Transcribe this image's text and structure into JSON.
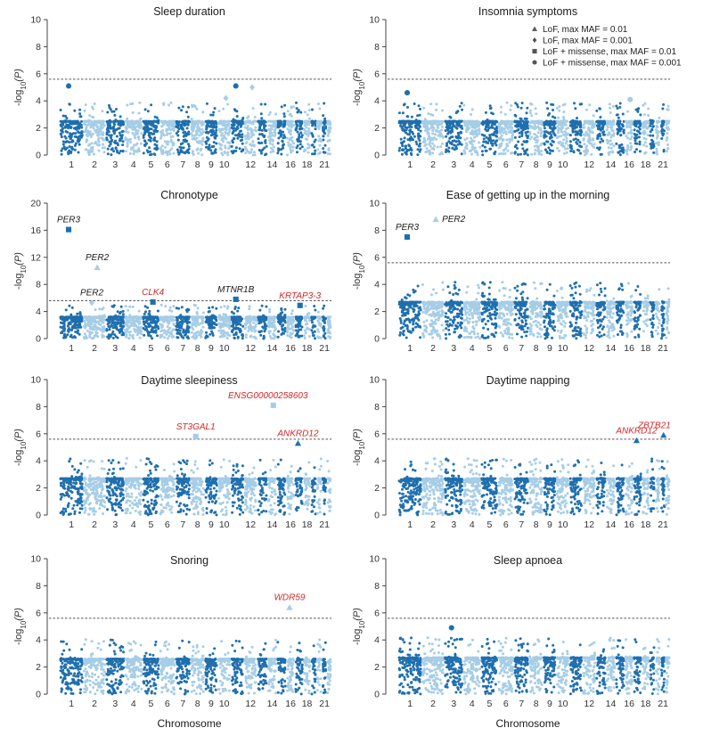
{
  "chart_data": {
    "type": "scatter",
    "subtype": "manhattan",
    "ylabel": "-log10(P)",
    "xlabel": "Chromosome",
    "significance_threshold": 5.6,
    "colors": {
      "odd_chromosome": "#1f6fae",
      "even_chromosome": "#a6cde6",
      "highlight_label": "#d62728",
      "plain_label": "#1a1a1a"
    },
    "legend": [
      {
        "shape": "triangle",
        "label": "LoF, max MAF = 0.01"
      },
      {
        "shape": "diamond",
        "label": "LoF, max MAF = 0.001"
      },
      {
        "shape": "square",
        "label": "LoF + missense, max MAF = 0.01"
      },
      {
        "shape": "circle",
        "label": "LoF + missense, max MAF = 0.001"
      }
    ],
    "chromosomes": [
      1,
      2,
      3,
      4,
      5,
      6,
      7,
      8,
      9,
      10,
      11,
      12,
      13,
      14,
      15,
      16,
      17,
      18,
      19,
      20,
      21,
      22
    ],
    "chromosome_tick_labels": [
      "1",
      "2",
      "3",
      "4",
      "5",
      "6",
      "7",
      "8",
      "9",
      "10",
      "",
      "12",
      "",
      "14",
      "",
      "16",
      "",
      "18",
      "",
      "",
      "21",
      ""
    ],
    "panels": [
      {
        "title": "Sleep duration",
        "ylim": [
          0,
          10
        ],
        "yticks": [
          0,
          2,
          4,
          6,
          8,
          10
        ],
        "base": 2.5,
        "hits": [
          {
            "chrom": 1,
            "value": 5.1,
            "shape": "circle",
            "gene": "",
            "label_color": "plain"
          },
          {
            "chrom": 10,
            "value": 4.2,
            "shape": "diamond",
            "gene": "",
            "label_color": "plain"
          },
          {
            "chrom": 11,
            "value": 5.1,
            "shape": "circle",
            "gene": "",
            "label_color": "plain"
          },
          {
            "chrom": 12,
            "value": 5.0,
            "shape": "diamond",
            "gene": "",
            "label_color": "plain"
          }
        ]
      },
      {
        "title": "Insomnia symptoms",
        "ylim": [
          0,
          10
        ],
        "yticks": [
          0,
          2,
          4,
          6,
          8,
          10
        ],
        "base": 2.5,
        "hits": [
          {
            "chrom": 1,
            "value": 4.6,
            "shape": "circle",
            "gene": "",
            "label_color": "plain"
          },
          {
            "chrom": 16,
            "value": 4.1,
            "shape": "circle",
            "gene": "",
            "label_color": "plain"
          }
        ]
      },
      {
        "title": "Chronotype",
        "ylim": [
          0,
          20
        ],
        "yticks": [
          0,
          4,
          8,
          12,
          16,
          20
        ],
        "base": 3.2,
        "hits": [
          {
            "chrom": 1,
            "value": 16.1,
            "shape": "square",
            "gene": "PER3",
            "label_color": "plain"
          },
          {
            "chrom": 2,
            "value": 10.5,
            "shape": "triangle",
            "gene": "PER2",
            "label_color": "plain"
          },
          {
            "chrom": 2,
            "value": 5.3,
            "shape": "diamond",
            "gene": "PER2",
            "label_color": "plain"
          },
          {
            "chrom": 5,
            "value": 5.4,
            "shape": "square",
            "gene": "CLK4",
            "label_color": "red"
          },
          {
            "chrom": 11,
            "value": 5.8,
            "shape": "square",
            "gene": "MTNR1B",
            "label_color": "plain"
          },
          {
            "chrom": 17,
            "value": 4.9,
            "shape": "square",
            "gene": "KRTAP3-3",
            "label_color": "red"
          }
        ]
      },
      {
        "title": "Ease of getting up in the morning",
        "ylim": [
          0,
          10
        ],
        "yticks": [
          0,
          2,
          4,
          6,
          8,
          10
        ],
        "base": 2.7,
        "hits": [
          {
            "chrom": 1,
            "value": 7.5,
            "shape": "square",
            "gene": "PER3",
            "label_color": "plain"
          },
          {
            "chrom": 2,
            "value": 8.8,
            "shape": "triangle",
            "gene": "PER2",
            "label_color": "plain"
          }
        ]
      },
      {
        "title": "Daytime sleepiness",
        "ylim": [
          0,
          10
        ],
        "yticks": [
          0,
          2,
          4,
          6,
          8,
          10
        ],
        "base": 2.7,
        "hits": [
          {
            "chrom": 8,
            "value": 5.8,
            "shape": "square",
            "gene": "ST3GAL1",
            "label_color": "red"
          },
          {
            "chrom": 14,
            "value": 8.1,
            "shape": "square",
            "gene": "ENSG00000258603",
            "label_color": "red"
          },
          {
            "chrom": 17,
            "value": 5.3,
            "shape": "triangle",
            "gene": "ANKRD12",
            "label_color": "red"
          }
        ]
      },
      {
        "title": "Daytime napping",
        "ylim": [
          0,
          10
        ],
        "yticks": [
          0,
          2,
          4,
          6,
          8,
          10
        ],
        "base": 2.7,
        "hits": [
          {
            "chrom": 17,
            "value": 5.5,
            "shape": "triangle",
            "gene": "ANKRD12",
            "label_color": "red"
          },
          {
            "chrom": 21,
            "value": 5.9,
            "shape": "triangle",
            "gene": "ZBTB21",
            "label_color": "red"
          }
        ]
      },
      {
        "title": "Snoring",
        "ylim": [
          0,
          10
        ],
        "yticks": [
          0,
          2,
          4,
          6,
          8,
          10
        ],
        "base": 2.6,
        "hits": [
          {
            "chrom": 16,
            "value": 6.4,
            "shape": "triangle",
            "gene": "WDR59",
            "label_color": "red"
          }
        ]
      },
      {
        "title": "Sleep apnoea",
        "ylim": [
          0,
          10
        ],
        "yticks": [
          0,
          2,
          4,
          6,
          8,
          10
        ],
        "base": 2.7,
        "hits": [
          {
            "chrom": 3,
            "value": 4.9,
            "shape": "circle",
            "gene": "",
            "label_color": "plain"
          }
        ]
      }
    ]
  }
}
